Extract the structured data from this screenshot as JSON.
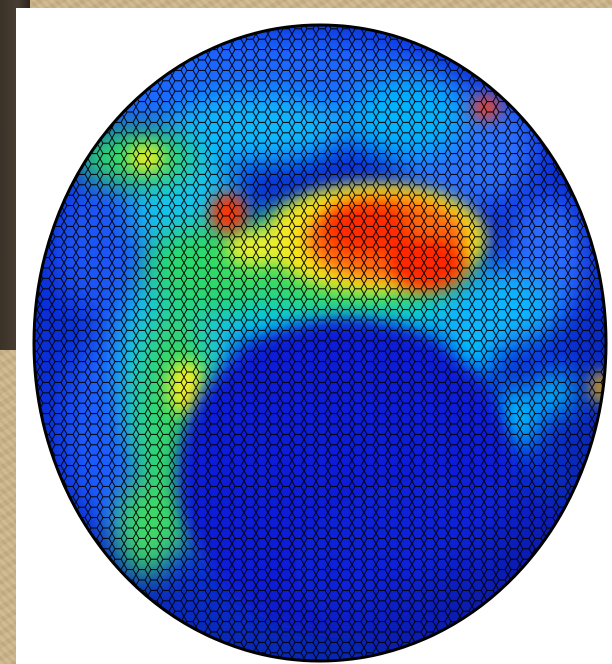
{
  "figure": {
    "description": "",
    "colors": {
      "background": "#cdb589",
      "panel": "#ffffff",
      "mesh_line": "#000000",
      "ocean_deep": "#0022cc",
      "low": "#1a5cff",
      "mid_low": "#00c8ff",
      "mid": "#22dd66",
      "mid_high": "#ffff22",
      "high": "#ff2200"
    },
    "icons": {
      "mesh_texture": "hexagonal-grid",
      "surface": "globe"
    }
  }
}
